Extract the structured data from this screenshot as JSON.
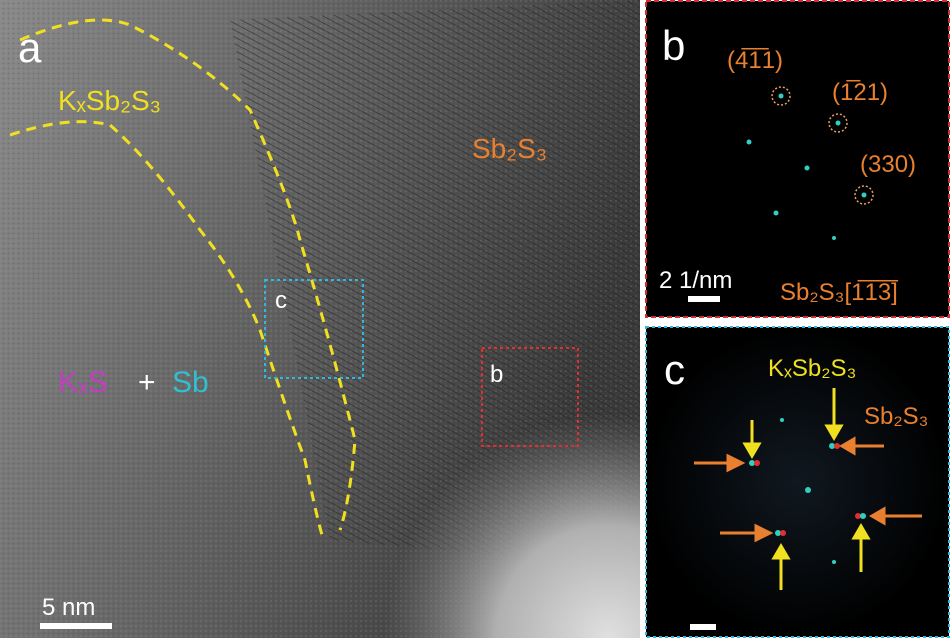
{
  "panel_a": {
    "label": "a",
    "phase_mixed": "KₓSb₂S₃",
    "phase_pristine": "Sb₂S₃",
    "product_1": "KₓS",
    "plus": "+",
    "product_2": "Sb",
    "box_c": "c",
    "box_b": "b",
    "scale_bar": "5 nm"
  },
  "panel_b": {
    "label": "b",
    "spots": [
      "(4̅1̅1)",
      "(1̅21)",
      "(330)"
    ],
    "scale_bar": "2 1/nm",
    "zone_axis": "Sb₂S₃[1̅1̅3̅]"
  },
  "panel_c": {
    "label": "c",
    "phase_1": "KₓSb₂S₃",
    "phase_2": "Sb₂S₃"
  }
}
